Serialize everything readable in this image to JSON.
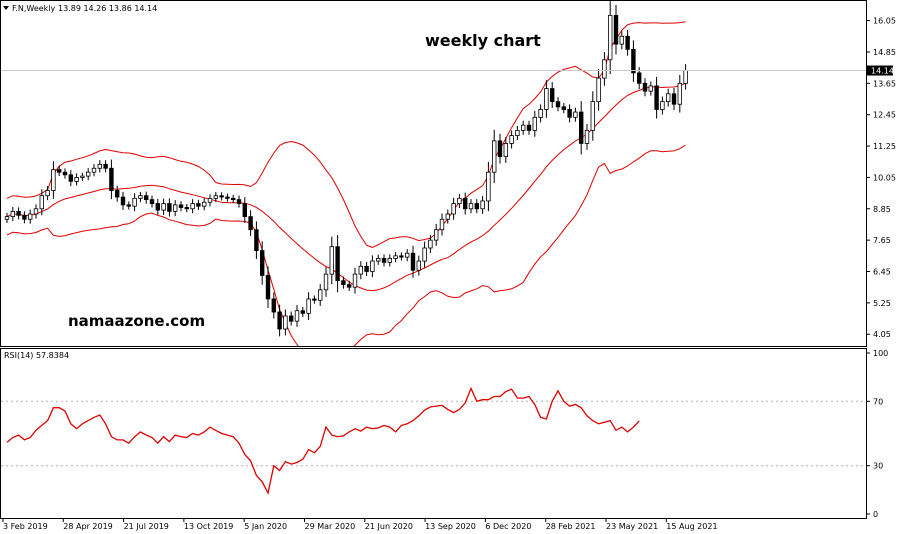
{
  "header": {
    "symbol_label": "F.N,Weekly",
    "ohlc": "13.89 14.26 13.86 14.14",
    "chart_title": "weekly chart",
    "watermark": "namaazone.com"
  },
  "rsi_panel": {
    "label": "RSI(14) 57.8384"
  },
  "colors": {
    "band": "#e00000",
    "rsi": "#e00000",
    "candle_bear": "#000000",
    "candle_bull": "#ffffff",
    "grid": "#b4b4b4",
    "price_tag_bg": "#000000",
    "price_tag_text": "#ffffff"
  },
  "chart_data": [
    {
      "type": "candlestick",
      "title": "weekly chart",
      "ylim": [
        3.6,
        16.8
      ],
      "y_ticks": [
        "16.05",
        "14.85",
        "13.65",
        "12.45",
        "11.25",
        "10.05",
        "8.85",
        "7.65",
        "6.45",
        "5.25",
        "4.05"
      ],
      "current_price": "14.14",
      "x_tick_labels": [
        "3 Feb 2019",
        "28 Apr 2019",
        "21 Jul 2019",
        "13 Oct 2019",
        "5 Jan 2020",
        "29 Mar 2020",
        "21 Jun 2020",
        "13 Sep 2020",
        "6 Dec 2020",
        "28 Feb 2021",
        "23 May 2021",
        "15 Aug 2021"
      ],
      "close": [
        8.55,
        8.75,
        8.6,
        8.45,
        8.65,
        8.85,
        9.35,
        9.55,
        10.35,
        10.25,
        10.15,
        9.9,
        10.05,
        10.1,
        10.25,
        10.4,
        10.55,
        10.4,
        9.55,
        9.3,
        9.0,
        8.95,
        9.25,
        9.35,
        9.2,
        9.05,
        8.8,
        9.05,
        8.75,
        9.0,
        8.9,
        8.85,
        9.05,
        8.95,
        9.1,
        9.25,
        9.35,
        9.3,
        9.25,
        9.2,
        9.05,
        8.55,
        8.05,
        7.25,
        6.3,
        5.4,
        4.9,
        4.25,
        4.75,
        4.55,
        4.95,
        4.85,
        5.4,
        5.35,
        5.75,
        6.35,
        7.4,
        6.1,
        5.95,
        5.85,
        6.35,
        6.65,
        6.45,
        6.85,
        6.95,
        6.8,
        6.95,
        7.05,
        7.0,
        7.15,
        6.5,
        6.85,
        7.35,
        7.65,
        8.05,
        8.45,
        8.65,
        9.05,
        9.25,
        8.85,
        9.05,
        8.85,
        9.15,
        10.25,
        11.45,
        10.85,
        11.35,
        11.65,
        11.85,
        12.05,
        11.85,
        12.35,
        12.65,
        13.45,
        12.95,
        12.75,
        12.65,
        12.35,
        12.55,
        11.35,
        11.85,
        12.95,
        13.85,
        14.55,
        16.25,
        15.15,
        15.45,
        14.95,
        14.05,
        13.65,
        13.35,
        13.55,
        12.65,
        12.95,
        13.25,
        12.85,
        13.65,
        14.14
      ]
    },
    {
      "type": "line",
      "title": "RSI(14) 57.8384",
      "ylim": [
        0,
        100
      ],
      "y_ticks": [
        100,
        70,
        30,
        0
      ],
      "levels": [
        70,
        30
      ],
      "values": [
        44.5,
        47.5,
        49.0,
        46.0,
        47.5,
        52.0,
        55.0,
        58.0,
        66.0,
        66.0,
        64.0,
        56.0,
        53.0,
        56.0,
        58.0,
        60.0,
        61.5,
        56.0,
        48.0,
        46.0,
        46.0,
        44.0,
        48.0,
        51.0,
        49.0,
        47.5,
        44.0,
        48.0,
        45.0,
        49.0,
        48.0,
        47.5,
        50.0,
        49.0,
        51.0,
        54.0,
        52.0,
        50.0,
        49.0,
        48.0,
        44.0,
        37.0,
        33.0,
        24.0,
        20.0,
        13.0,
        30.0,
        27.0,
        32.5,
        31.0,
        32.0,
        34.0,
        40.0,
        38.0,
        42.0,
        54.0,
        49.0,
        48.0,
        48.5,
        51.0,
        53.0,
        51.5,
        54.0,
        53.0,
        53.5,
        55.0,
        54.0,
        51.0,
        55.0,
        56.0,
        58.0,
        61.0,
        64.5,
        66.5,
        67.0,
        67.5,
        65.0,
        63.0,
        65.0,
        69.0,
        78.0,
        70.0,
        71.0,
        71.0,
        73.0,
        73.0,
        76.0,
        77.5,
        72.0,
        72.0,
        73.0,
        68.0,
        60.0,
        59.0,
        70.0,
        76.5,
        70.0,
        67.0,
        68.0,
        66.0,
        61.0,
        58.0,
        56.0,
        57.0,
        58.0,
        52.0,
        54.0,
        51.0,
        54.0,
        57.8
      ]
    }
  ]
}
